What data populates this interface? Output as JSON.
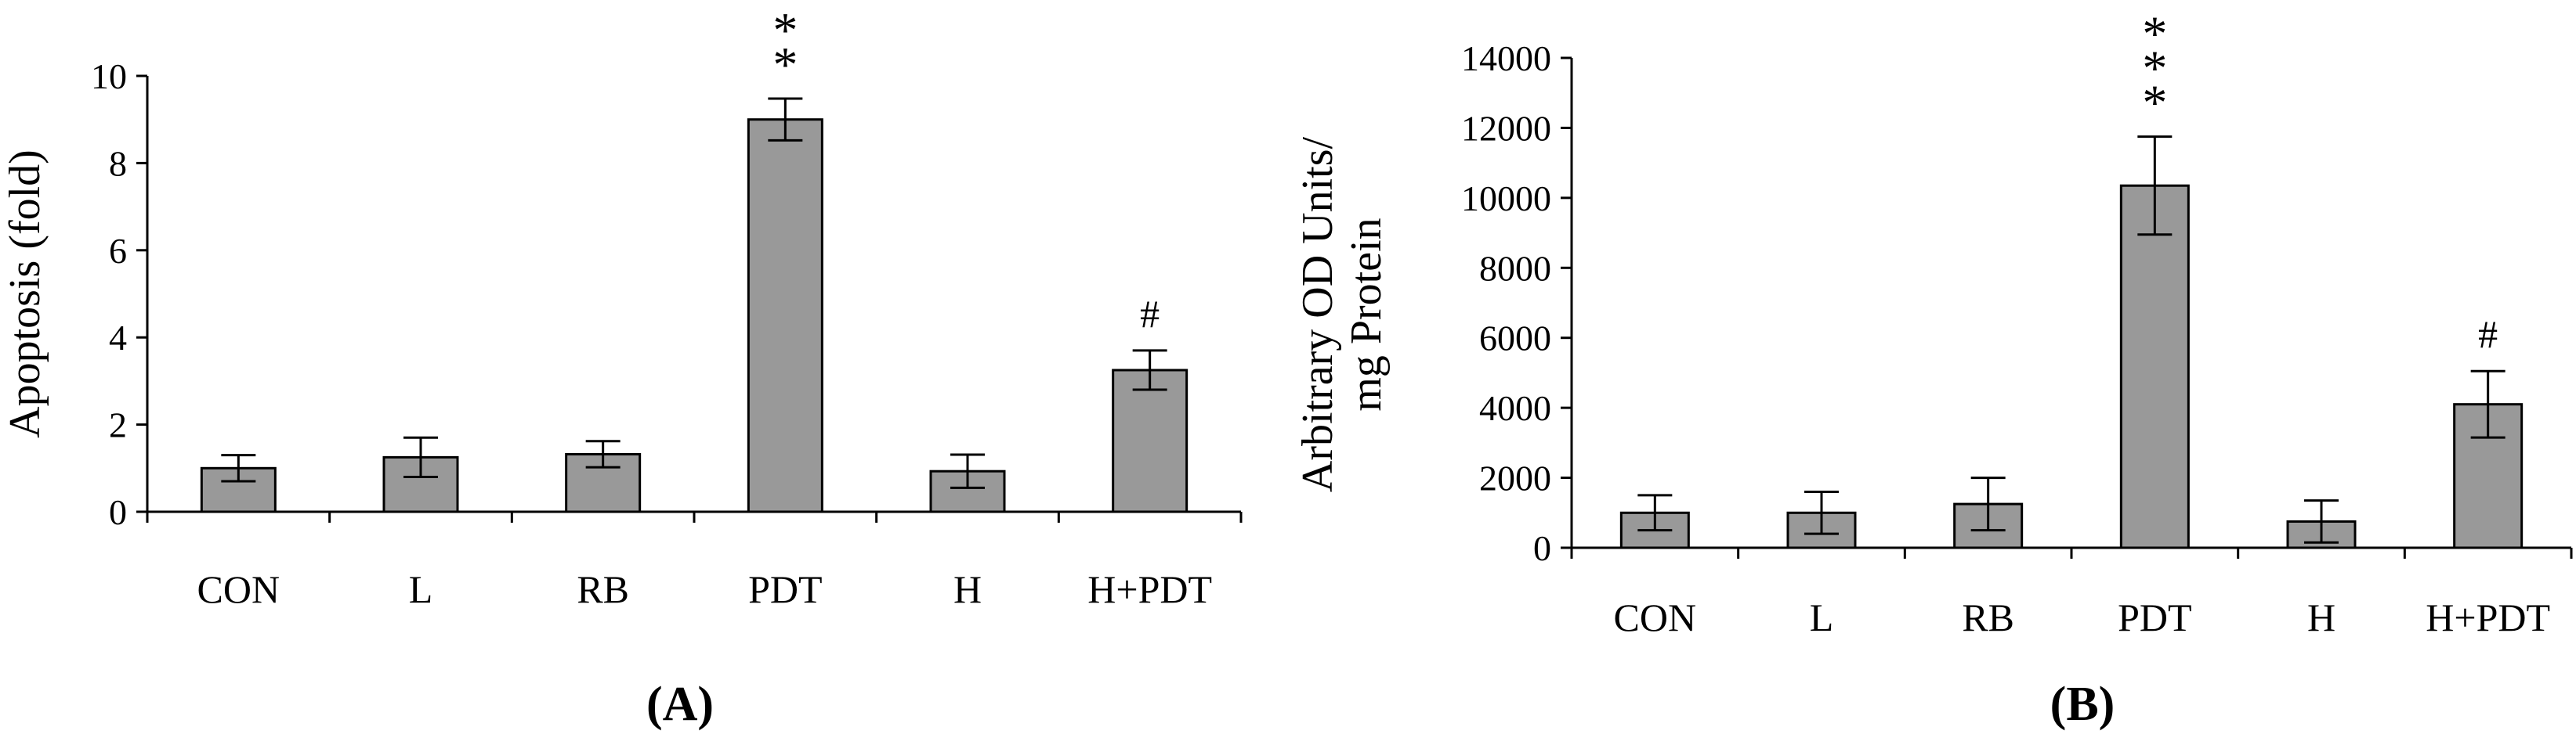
{
  "chart_data": [
    {
      "type": "bar",
      "panel_label": "(A)",
      "ylabel": "Apoptosis (fold)",
      "categories": [
        "CON",
        "L",
        "RB",
        "PDT",
        "H",
        "H+PDT"
      ],
      "values": [
        1.0,
        1.25,
        1.32,
        9.0,
        0.93,
        3.25
      ],
      "errors": [
        0.3,
        0.45,
        0.3,
        0.48,
        0.38,
        0.45
      ],
      "annotations": [
        "",
        "",
        "",
        "***",
        "",
        "#"
      ],
      "ylim": [
        0,
        10
      ],
      "yticks": [
        "0",
        "2",
        "4",
        "6",
        "8",
        "10"
      ],
      "grid": false,
      "bar_color": "#999999"
    },
    {
      "type": "bar",
      "panel_label": "(B)",
      "ylabel": "Arbitrary OD Units/ mg Protein",
      "ylabel_lines": [
        "Arbitrary OD Units/",
        "mg Protein"
      ],
      "categories": [
        "CON",
        "L",
        "RB",
        "PDT",
        "H",
        "H+PDT"
      ],
      "values": [
        1000,
        1000,
        1250,
        10350,
        750,
        4100
      ],
      "errors": [
        500,
        600,
        750,
        1400,
        600,
        950
      ],
      "annotations": [
        "",
        "",
        "",
        "***",
        "",
        "#"
      ],
      "ylim": [
        0,
        14000
      ],
      "yticks": [
        "0",
        "2000",
        "4000",
        "6000",
        "8000",
        "10000",
        "12000",
        "14000"
      ],
      "grid": false,
      "bar_color": "#999999"
    }
  ]
}
